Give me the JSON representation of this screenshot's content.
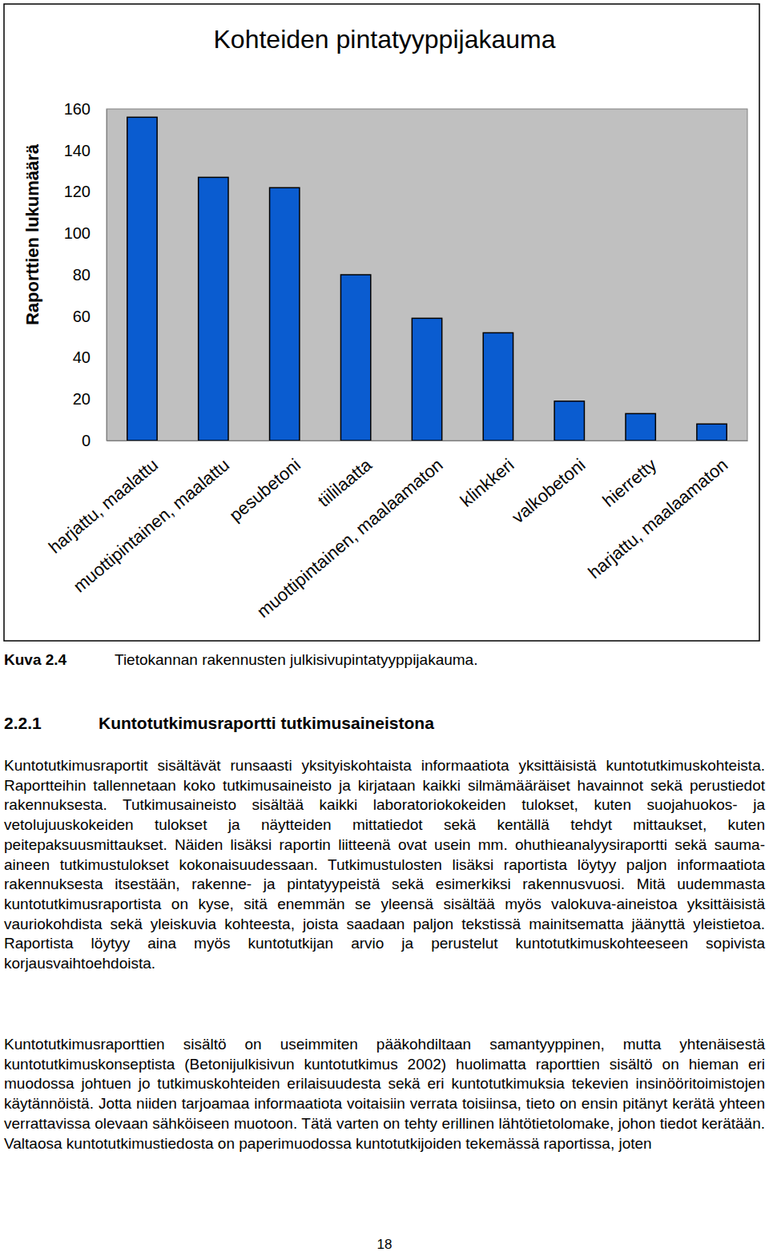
{
  "chart_data": {
    "type": "bar",
    "title": "Kohteiden pintatyyppijakauma",
    "y_label": "Raporttien lukumäärä",
    "categories": [
      "harjattu, maalattu",
      "muottipintainen, maalattu",
      "pesubetoni",
      "tiililaatta",
      "muottipintainen, maalaamaton",
      "klinkkeri",
      "valkobetoni",
      "hierretty",
      "harjattu, maalaamaton"
    ],
    "values": [
      156,
      127,
      122,
      80,
      59,
      52,
      19,
      13,
      8
    ],
    "color": "#0a5cd0",
    "ylim": [
      0,
      160
    ],
    "yticks": [
      0,
      20,
      40,
      60,
      80,
      100,
      120,
      140,
      160
    ],
    "grid": false
  },
  "caption": {
    "label": "Kuva 2.4",
    "text": "Tietokannan rakennusten julkisivupintatyyppijakauma."
  },
  "section": {
    "number": "2.2.1",
    "title": "Kuntotutkimusraportti tutkimusaineistona"
  },
  "paragraphs": [
    "Kuntotutkimusraportit sisältävät runsaasti yksityiskohtaista informaatiota yksittäisistä kuntotutkimuskohteista. Raportteihin tallennetaan koko tutkimusaineisto ja kirjataan kaikki silmämääräiset havainnot sekä perustiedot rakennuksesta. Tutkimusaineisto sisältää kaikki laboratoriokokeiden tulokset, kuten suojahuokos- ja vetolujuuskokeiden tulokset ja näytteiden mittatiedot sekä kentällä tehdyt mittaukset, kuten peitepaksuusmittaukset. Näiden lisäksi raportin liitteenä ovat usein mm. ohuthieanalyysiraportti sekä sauma-aineen tutkimustulokset kokonaisuudessaan. Tutkimustulosten lisäksi raportista löytyy paljon informaatiota rakennuksesta itsestään, rakenne- ja pintatyypeistä sekä esimerkiksi rakennusvuosi. Mitä uudemmasta kuntotutkimusraportista on kyse, sitä enemmän se yleensä sisältää myös valokuva-aineistoa yksittäisistä vauriokohdista sekä yleiskuvia kohteesta, joista saadaan paljon tekstissä mainitsematta jäänyttä yleistietoa. Raportista löytyy aina myös kuntotutkijan arvio ja perustelut kuntotutkimuskohteeseen sopivista korjausvaihtoehdoista.",
    "Kuntotutkimusraporttien sisältö on useimmiten pääkohdiltaan samantyyppinen, mutta yhtenäisestä kuntotutkimuskonseptista (Betonijulkisivun kuntotutkimus 2002) huolimatta raporttien sisältö on hieman eri muodossa johtuen jo tutkimuskohteiden erilaisuudesta sekä eri kuntotutkimuksia tekevien insinööritoimistojen käytännöistä. Jotta niiden tarjoamaa informaatiota voitaisiin verrata toisiinsa, tieto on ensin pitänyt kerätä yhteen verrattavissa olevaan sähköiseen muotoon. Tätä varten on tehty erillinen lähtötietolomake, johon tiedot kerätään. Valtaosa kuntotutkimustiedosta on paperimuodossa kuntotutkijoiden tekemässä raportissa, joten"
  ],
  "page_number": "18"
}
